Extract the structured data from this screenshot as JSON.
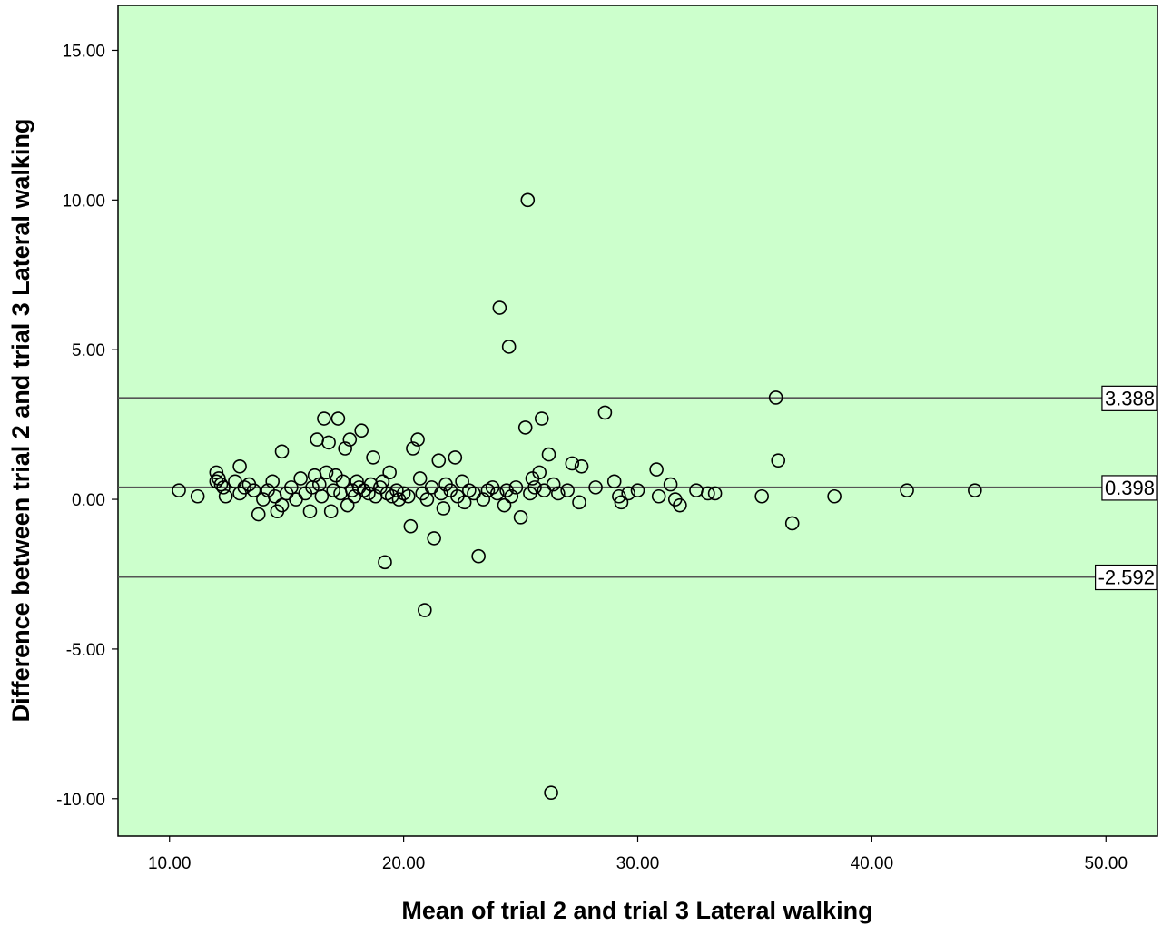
{
  "chart_data": {
    "type": "scatter",
    "title": "",
    "xlabel": "Mean of trial 2 and trial 3 Lateral walking",
    "ylabel": "Difference between trial 2 and trial 3 Lateral walking",
    "xlim": [
      7.8,
      52.2
    ],
    "ylim": [
      -11.25,
      16.5
    ],
    "x_ticks": [
      10,
      20,
      30,
      40,
      50
    ],
    "x_tick_labels": [
      "10.00",
      "20.00",
      "30.00",
      "40.00",
      "50.00"
    ],
    "y_ticks": [
      -10,
      -5,
      0,
      5,
      10,
      15
    ],
    "y_tick_labels": [
      "-10.00",
      "-5.00",
      "0.00",
      "5.00",
      "10.00",
      "15.00"
    ],
    "grid": false,
    "legend": "none",
    "colors": {
      "plot_background": "#ccffcc",
      "marker": "#000000",
      "reference_line": "#555555"
    },
    "reference_lines": [
      {
        "y": 3.388,
        "label": "3.388"
      },
      {
        "y": 0.398,
        "label": "0.398"
      },
      {
        "y": -2.592,
        "label": "-2.592"
      }
    ],
    "points": [
      [
        10.4,
        0.3
      ],
      [
        11.2,
        0.1
      ],
      [
        12.0,
        0.6
      ],
      [
        12.0,
        0.9
      ],
      [
        12.1,
        0.7
      ],
      [
        12.2,
        0.5
      ],
      [
        12.3,
        0.4
      ],
      [
        12.4,
        0.1
      ],
      [
        12.8,
        0.6
      ],
      [
        13.0,
        1.1
      ],
      [
        13.0,
        0.2
      ],
      [
        13.2,
        0.4
      ],
      [
        13.4,
        0.5
      ],
      [
        13.6,
        0.3
      ],
      [
        13.8,
        -0.5
      ],
      [
        14.0,
        0.0
      ],
      [
        14.2,
        0.3
      ],
      [
        14.4,
        0.6
      ],
      [
        14.5,
        0.1
      ],
      [
        14.6,
        -0.4
      ],
      [
        14.8,
        -0.2
      ],
      [
        14.8,
        1.6
      ],
      [
        15.0,
        0.2
      ],
      [
        15.2,
        0.4
      ],
      [
        15.4,
        0.0
      ],
      [
        15.6,
        0.7
      ],
      [
        15.8,
        0.2
      ],
      [
        16.0,
        -0.4
      ],
      [
        16.1,
        0.4
      ],
      [
        16.2,
        0.8
      ],
      [
        16.3,
        2.0
      ],
      [
        16.4,
        0.5
      ],
      [
        16.5,
        0.1
      ],
      [
        16.6,
        2.7
      ],
      [
        16.7,
        0.9
      ],
      [
        16.8,
        1.9
      ],
      [
        16.9,
        -0.4
      ],
      [
        17.0,
        0.3
      ],
      [
        17.1,
        0.8
      ],
      [
        17.2,
        2.7
      ],
      [
        17.3,
        0.2
      ],
      [
        17.4,
        0.6
      ],
      [
        17.5,
        1.7
      ],
      [
        17.6,
        -0.2
      ],
      [
        17.7,
        2.0
      ],
      [
        17.8,
        0.3
      ],
      [
        17.9,
        0.1
      ],
      [
        18.0,
        0.6
      ],
      [
        18.1,
        0.4
      ],
      [
        18.2,
        2.3
      ],
      [
        18.3,
        0.3
      ],
      [
        18.5,
        0.2
      ],
      [
        18.6,
        0.5
      ],
      [
        18.7,
        1.4
      ],
      [
        18.8,
        0.1
      ],
      [
        19.0,
        0.4
      ],
      [
        19.1,
        0.6
      ],
      [
        19.2,
        -2.1
      ],
      [
        19.3,
        0.2
      ],
      [
        19.4,
        0.9
      ],
      [
        19.5,
        0.1
      ],
      [
        19.7,
        0.3
      ],
      [
        19.8,
        0.0
      ],
      [
        20.0,
        0.2
      ],
      [
        20.2,
        0.1
      ],
      [
        20.3,
        -0.9
      ],
      [
        20.4,
        1.7
      ],
      [
        20.6,
        2.0
      ],
      [
        20.7,
        0.7
      ],
      [
        20.8,
        0.2
      ],
      [
        20.9,
        -3.7
      ],
      [
        21.0,
        0.0
      ],
      [
        21.2,
        0.4
      ],
      [
        21.3,
        -1.3
      ],
      [
        21.5,
        1.3
      ],
      [
        21.6,
        0.2
      ],
      [
        21.7,
        -0.3
      ],
      [
        21.8,
        0.5
      ],
      [
        22.0,
        0.3
      ],
      [
        22.2,
        1.4
      ],
      [
        22.3,
        0.1
      ],
      [
        22.5,
        0.6
      ],
      [
        22.6,
        -0.1
      ],
      [
        22.8,
        0.3
      ],
      [
        23.0,
        0.2
      ],
      [
        23.2,
        -1.9
      ],
      [
        23.4,
        0.0
      ],
      [
        23.6,
        0.3
      ],
      [
        23.8,
        0.4
      ],
      [
        24.0,
        0.2
      ],
      [
        24.1,
        6.4
      ],
      [
        24.3,
        -0.2
      ],
      [
        24.4,
        0.3
      ],
      [
        24.5,
        5.1
      ],
      [
        24.6,
        0.1
      ],
      [
        24.8,
        0.4
      ],
      [
        25.0,
        -0.6
      ],
      [
        25.2,
        2.4
      ],
      [
        25.3,
        10.0
      ],
      [
        25.4,
        0.2
      ],
      [
        25.5,
        0.7
      ],
      [
        25.6,
        0.4
      ],
      [
        25.8,
        0.9
      ],
      [
        25.9,
        2.7
      ],
      [
        26.0,
        0.3
      ],
      [
        26.2,
        1.5
      ],
      [
        26.3,
        -9.8
      ],
      [
        26.4,
        0.5
      ],
      [
        26.6,
        0.2
      ],
      [
        27.0,
        0.3
      ],
      [
        27.2,
        1.2
      ],
      [
        27.5,
        -0.1
      ],
      [
        27.6,
        1.1
      ],
      [
        28.2,
        0.4
      ],
      [
        28.6,
        2.9
      ],
      [
        29.0,
        0.6
      ],
      [
        29.2,
        0.1
      ],
      [
        29.3,
        -0.1
      ],
      [
        29.6,
        0.2
      ],
      [
        30.0,
        0.3
      ],
      [
        30.8,
        1.0
      ],
      [
        30.9,
        0.1
      ],
      [
        31.4,
        0.5
      ],
      [
        31.6,
        0.0
      ],
      [
        31.8,
        -0.2
      ],
      [
        32.5,
        0.3
      ],
      [
        33.0,
        0.2
      ],
      [
        33.3,
        0.2
      ],
      [
        35.3,
        0.1
      ],
      [
        35.9,
        3.4
      ],
      [
        36.0,
        1.3
      ],
      [
        36.6,
        -0.8
      ],
      [
        38.4,
        0.1
      ],
      [
        41.5,
        0.3
      ],
      [
        44.4,
        0.3
      ]
    ]
  }
}
